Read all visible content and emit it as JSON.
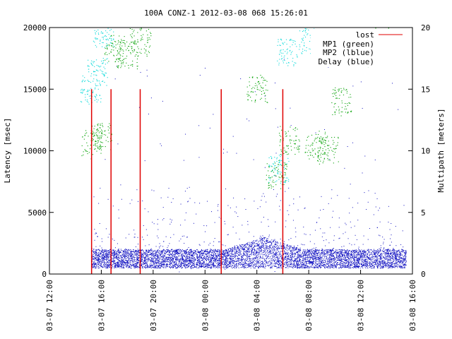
{
  "chart_data": {
    "type": "scatter",
    "title": "100A CONZ-1 2012-03-08 068 15:26:01",
    "ylabel": "Latency [msec]",
    "y2label": "Multipath [meters]",
    "xlabel": "",
    "x_ticks": [
      "03-07 12:00",
      "03-07 16:00",
      "03-07 20:00",
      "03-08 00:00",
      "03-08 04:00",
      "03-08 08:00",
      "03-08 12:00",
      "03-08 16:00"
    ],
    "xlim": [
      "03-07 12:00",
      "03-08 16:00"
    ],
    "y_ticks": [
      "0",
      "5000",
      "10000",
      "15000",
      "20000"
    ],
    "ylim": [
      0,
      20000
    ],
    "y2_ticks": [
      "0",
      "5",
      "10",
      "15",
      "20"
    ],
    "y2lim": [
      0,
      20
    ],
    "grid": false,
    "legend_position": "top-right",
    "colors": {
      "lost": "#e00000",
      "mp1": "#00a000",
      "mp2": "#00d8d8",
      "delay": "#1010c0"
    },
    "series": [
      {
        "name": "lost",
        "kind": "impulse",
        "x": [
          "03-07 15:15",
          "03-07 16:45",
          "03-07 19:00",
          "03-08 01:15",
          "03-08 06:00"
        ],
        "y": [
          15000,
          15000,
          15000,
          15000,
          15000
        ]
      },
      {
        "name": "MP1 (green)",
        "kind": "points",
        "axis": "y2",
        "x": [
          "03-07 15:15",
          "03-07 16:00",
          "03-07 17:00",
          "03-07 18:00",
          "03-07 19:00",
          "03-08 04:00",
          "03-08 05:30",
          "03-08 06:30",
          "03-08 08:30",
          "03-08 09:30",
          "03-08 10:30",
          "03-08 12:00",
          "03-08 13:30"
        ],
        "y": [
          10.6,
          11.2,
          18.3,
          17.8,
          18.8,
          15.0,
          8.0,
          10.8,
          10.4,
          10.1,
          14.0,
          18.0,
          19.8
        ]
      },
      {
        "name": "MP2 (lblue)",
        "kind": "points",
        "axis": "y2",
        "x": [
          "03-07 15:10",
          "03-07 15:40",
          "03-07 16:10",
          "03-08 05:40",
          "03-08 06:20",
          "03-08 08:00"
        ],
        "y": [
          15.0,
          16.5,
          19.5,
          8.5,
          18.0,
          19.0
        ]
      },
      {
        "name": "Delay (blue)",
        "kind": "points",
        "x_range": [
          "03-07 15:15",
          "03-08 15:30"
        ],
        "typical_y": [
          500,
          2000
        ],
        "peak_y": 4500
      }
    ]
  }
}
